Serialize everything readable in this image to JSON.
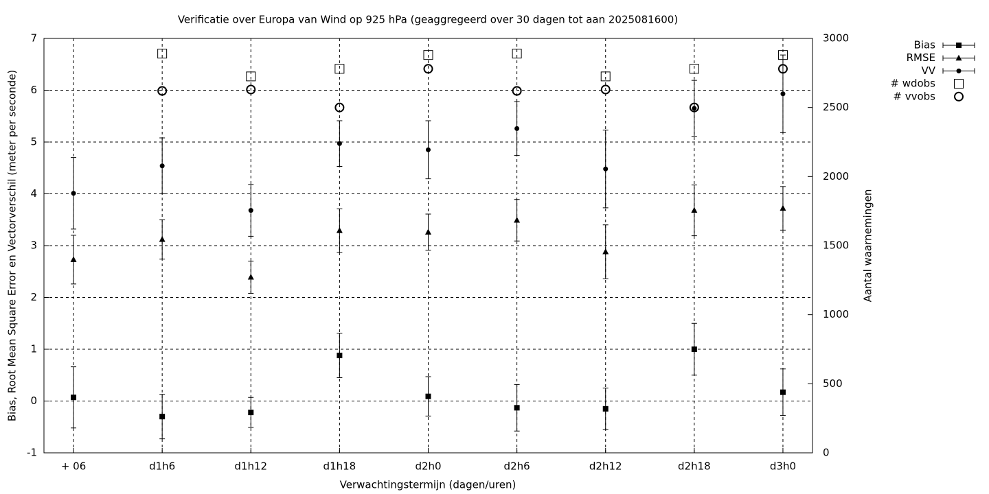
{
  "chart_data": {
    "type": "errorbar",
    "title": "Verificatie over Europa van Wind op 925 hPa (geaggregeerd over 30 dagen tot aan 2025081600)",
    "x_label": "Verwachtingstermijn (dagen/uren)",
    "y_label": "Bias, Root Mean Square Error en Vectorverschil (meter per seconde)",
    "y2_label": "Aantal waarnemingen",
    "categories": [
      "+ 06",
      "d1h6",
      "d1h12",
      "d1h18",
      "d2h0",
      "d2h6",
      "d2h12",
      "d2h18",
      "d3h0"
    ],
    "ylim": [
      -1,
      7
    ],
    "yticks": [
      -1,
      0,
      1,
      2,
      3,
      4,
      5,
      6,
      7
    ],
    "y2lim": [
      0,
      3000
    ],
    "y2ticks": [
      0,
      500,
      1000,
      1500,
      2000,
      2500,
      3000
    ],
    "grid": true,
    "legend": "top-right",
    "color": "#000000",
    "series": [
      {
        "name": "Bias",
        "marker": "square",
        "values": [
          0.07,
          -0.3,
          -0.22,
          0.88,
          0.09,
          -0.13,
          -0.15,
          1.0,
          0.17
        ],
        "errors": [
          0.59,
          0.43,
          0.29,
          0.43,
          0.38,
          0.45,
          0.4,
          0.5,
          0.45
        ]
      },
      {
        "name": "RMSE",
        "marker": "triangle",
        "values": [
          2.73,
          3.12,
          2.39,
          3.29,
          3.26,
          3.49,
          2.88,
          3.68,
          3.72
        ],
        "errors": [
          0.47,
          0.38,
          0.31,
          0.42,
          0.35,
          0.4,
          0.52,
          0.49,
          0.42
        ]
      },
      {
        "name": "VV",
        "marker": "circle",
        "values": [
          4.01,
          4.54,
          3.68,
          4.97,
          4.85,
          5.26,
          4.48,
          5.65,
          5.93
        ],
        "errors": [
          0.69,
          0.54,
          0.5,
          0.44,
          0.56,
          0.52,
          0.75,
          0.54,
          0.75
        ]
      },
      {
        "name": "# wdobs",
        "marker": "open-square",
        "axis": "y2",
        "values": [
          null,
          2890,
          2725,
          2780,
          2880,
          2890,
          2725,
          2780,
          2880
        ]
      },
      {
        "name": "# vvobs",
        "marker": "open-circle",
        "axis": "y2",
        "values": [
          null,
          2620,
          2630,
          2500,
          2780,
          2620,
          2630,
          2500,
          2780
        ]
      }
    ]
  }
}
